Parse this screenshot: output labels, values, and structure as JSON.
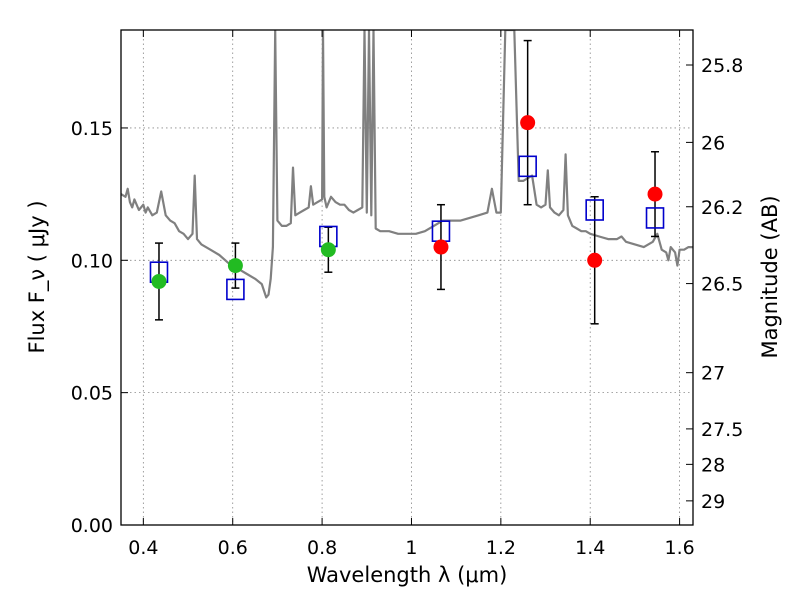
{
  "chart_data": {
    "type": "scatter",
    "title": "",
    "xlabel": "Wavelength  λ (μm)",
    "ylabel": "Flux  F_ν  ( μJy )",
    "ylabel_right": "Magnitude (AB)",
    "xlim": [
      0.35,
      1.63
    ],
    "ylim": [
      0.0,
      0.187
    ],
    "grid": true,
    "x_ticks": [
      {
        "value": 0.4,
        "label": "0.4"
      },
      {
        "value": 0.6,
        "label": "0.6"
      },
      {
        "value": 0.8,
        "label": "0.8"
      },
      {
        "value": 1.0,
        "label": "1"
      },
      {
        "value": 1.2,
        "label": "1.2"
      },
      {
        "value": 1.4,
        "label": "1.4"
      },
      {
        "value": 1.6,
        "label": "1.6"
      }
    ],
    "y_ticks": [
      {
        "value": 0.0,
        "label": "0.00"
      },
      {
        "value": 0.05,
        "label": "0.05"
      },
      {
        "value": 0.1,
        "label": "0.10"
      },
      {
        "value": 0.15,
        "label": "0.15"
      }
    ],
    "right_ticks": [
      {
        "label": "25.8"
      },
      {
        "label": "26"
      },
      {
        "label": "26.2"
      },
      {
        "label": "26.5"
      },
      {
        "label": "27"
      },
      {
        "label": "27.5"
      },
      {
        "label": "28"
      },
      {
        "label": "29"
      }
    ],
    "colors": {
      "green": "#22bb22",
      "red": "#ff0000",
      "model_box": "#0000cc",
      "template": "#808080",
      "errorbar": "#000000",
      "grid": "#888888"
    },
    "series": [
      {
        "marker": "circle",
        "color": "#22bb22",
        "points": [
          {
            "x": 0.435,
            "y": 0.092,
            "err": 0.0145
          },
          {
            "x": 0.606,
            "y": 0.098,
            "err": 0.0085
          },
          {
            "x": 0.814,
            "y": 0.104,
            "err": 0.0085
          }
        ]
      },
      {
        "marker": "circle",
        "color": "#ff0000",
        "points": [
          {
            "x": 1.066,
            "y": 0.105,
            "err": 0.016
          },
          {
            "x": 1.26,
            "y": 0.152,
            "err": 0.031
          },
          {
            "x": 1.41,
            "y": 0.1,
            "err": 0.024
          },
          {
            "x": 1.545,
            "y": 0.125,
            "err": 0.016
          }
        ]
      },
      {
        "marker": "open-square",
        "color": "#0000cc",
        "points": [
          {
            "x": 0.435,
            "y": 0.0955
          },
          {
            "x": 0.606,
            "y": 0.089
          },
          {
            "x": 0.814,
            "y": 0.109
          },
          {
            "x": 1.066,
            "y": 0.111
          },
          {
            "x": 1.26,
            "y": 0.1355
          },
          {
            "x": 1.41,
            "y": 0.119
          },
          {
            "x": 1.545,
            "y": 0.116
          }
        ]
      },
      {
        "marker": "line",
        "color": "#808080",
        "points": [
          [
            0.35,
            0.125
          ],
          [
            0.36,
            0.124
          ],
          [
            0.365,
            0.127
          ],
          [
            0.37,
            0.122
          ],
          [
            0.375,
            0.12
          ],
          [
            0.38,
            0.123
          ],
          [
            0.39,
            0.119
          ],
          [
            0.4,
            0.121
          ],
          [
            0.405,
            0.118
          ],
          [
            0.41,
            0.12
          ],
          [
            0.42,
            0.117
          ],
          [
            0.43,
            0.118
          ],
          [
            0.44,
            0.126
          ],
          [
            0.45,
            0.117
          ],
          [
            0.46,
            0.115
          ],
          [
            0.47,
            0.114
          ],
          [
            0.48,
            0.111
          ],
          [
            0.49,
            0.11
          ],
          [
            0.5,
            0.108
          ],
          [
            0.51,
            0.11
          ],
          [
            0.515,
            0.132
          ],
          [
            0.52,
            0.108
          ],
          [
            0.53,
            0.106
          ],
          [
            0.55,
            0.104
          ],
          [
            0.57,
            0.102
          ],
          [
            0.59,
            0.099
          ],
          [
            0.61,
            0.097
          ],
          [
            0.63,
            0.095
          ],
          [
            0.65,
            0.093
          ],
          [
            0.665,
            0.091
          ],
          [
            0.675,
            0.086
          ],
          [
            0.68,
            0.087
          ],
          [
            0.685,
            0.093
          ],
          [
            0.69,
            0.105
          ],
          [
            0.695,
            0.187
          ],
          [
            0.7,
            0.115
          ],
          [
            0.71,
            0.113
          ],
          [
            0.72,
            0.113
          ],
          [
            0.73,
            0.114
          ],
          [
            0.735,
            0.135
          ],
          [
            0.74,
            0.117
          ],
          [
            0.75,
            0.118
          ],
          [
            0.76,
            0.119
          ],
          [
            0.77,
            0.12
          ],
          [
            0.775,
            0.128
          ],
          [
            0.78,
            0.121
          ],
          [
            0.79,
            0.122
          ],
          [
            0.8,
            0.123
          ],
          [
            0.802,
            0.187
          ],
          [
            0.805,
            0.124
          ],
          [
            0.81,
            0.12
          ],
          [
            0.82,
            0.124
          ],
          [
            0.83,
            0.122
          ],
          [
            0.84,
            0.121
          ],
          [
            0.85,
            0.121
          ],
          [
            0.86,
            0.119
          ],
          [
            0.87,
            0.118
          ],
          [
            0.88,
            0.119
          ],
          [
            0.89,
            0.12
          ],
          [
            0.895,
            0.187
          ],
          [
            0.9,
            0.118
          ],
          [
            0.905,
            0.187
          ],
          [
            0.91,
            0.117
          ],
          [
            0.915,
            0.187
          ],
          [
            0.92,
            0.112
          ],
          [
            0.93,
            0.111
          ],
          [
            0.95,
            0.111
          ],
          [
            0.97,
            0.11
          ],
          [
            0.99,
            0.11
          ],
          [
            1.01,
            0.11
          ],
          [
            1.03,
            0.111
          ],
          [
            1.05,
            0.113
          ],
          [
            1.07,
            0.115
          ],
          [
            1.09,
            0.115
          ],
          [
            1.11,
            0.115
          ],
          [
            1.13,
            0.116
          ],
          [
            1.15,
            0.117
          ],
          [
            1.17,
            0.118
          ],
          [
            1.18,
            0.127
          ],
          [
            1.19,
            0.118
          ],
          [
            1.2,
            0.118
          ],
          [
            1.21,
            0.187
          ],
          [
            1.22,
            0.187
          ],
          [
            1.23,
            0.187
          ],
          [
            1.24,
            0.13
          ],
          [
            1.25,
            0.13
          ],
          [
            1.26,
            0.131
          ],
          [
            1.27,
            0.132
          ],
          [
            1.28,
            0.121
          ],
          [
            1.29,
            0.12
          ],
          [
            1.3,
            0.121
          ],
          [
            1.305,
            0.134
          ],
          [
            1.31,
            0.12
          ],
          [
            1.32,
            0.118
          ],
          [
            1.33,
            0.117
          ],
          [
            1.34,
            0.119
          ],
          [
            1.345,
            0.14
          ],
          [
            1.35,
            0.117
          ],
          [
            1.36,
            0.113
          ],
          [
            1.37,
            0.112
          ],
          [
            1.38,
            0.111
          ],
          [
            1.39,
            0.111
          ],
          [
            1.4,
            0.11
          ],
          [
            1.42,
            0.109
          ],
          [
            1.44,
            0.108
          ],
          [
            1.46,
            0.108
          ],
          [
            1.47,
            0.109
          ],
          [
            1.48,
            0.107
          ],
          [
            1.5,
            0.106
          ],
          [
            1.52,
            0.105
          ],
          [
            1.54,
            0.107
          ],
          [
            1.55,
            0.11
          ],
          [
            1.56,
            0.104
          ],
          [
            1.57,
            0.103
          ],
          [
            1.575,
            0.1
          ],
          [
            1.58,
            0.105
          ],
          [
            1.59,
            0.103
          ],
          [
            1.595,
            0.098
          ],
          [
            1.6,
            0.104
          ],
          [
            1.61,
            0.104
          ],
          [
            1.62,
            0.105
          ],
          [
            1.63,
            0.105
          ]
        ]
      }
    ]
  }
}
